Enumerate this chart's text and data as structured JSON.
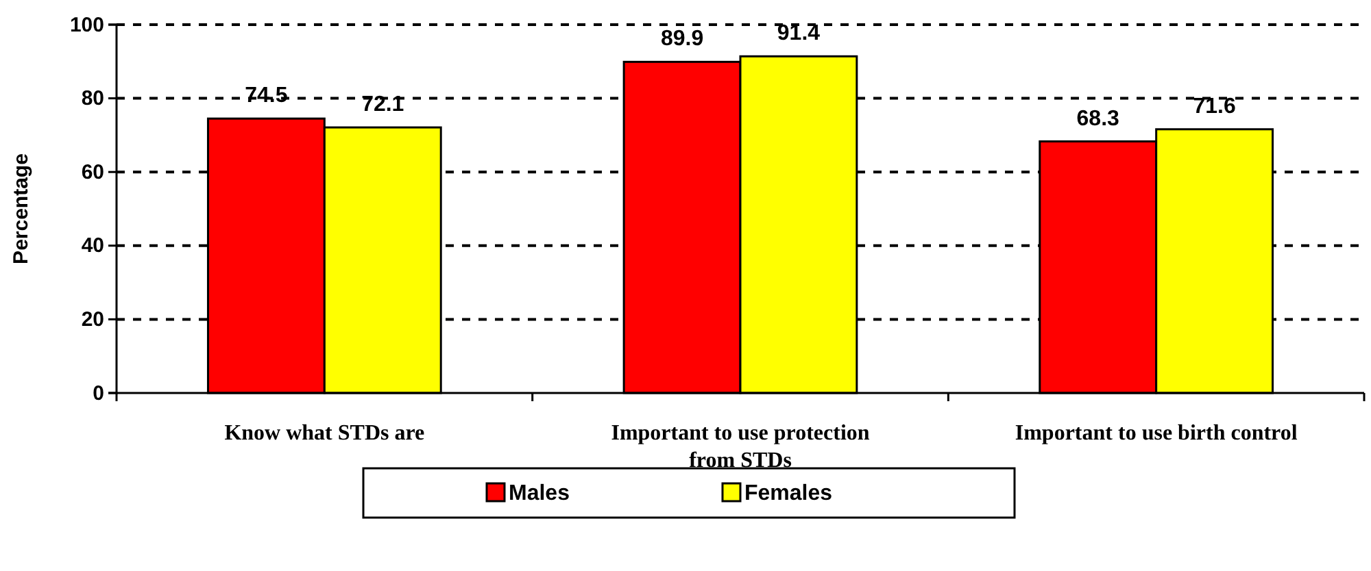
{
  "chart_data": {
    "type": "bar",
    "ylabel": "Percentage",
    "categories": [
      "Know what STDs are",
      "Important to use protection from STDs",
      "Important to use birth control"
    ],
    "series": [
      {
        "name": "Males",
        "color": "#ff0000",
        "values": [
          74.5,
          89.9,
          68.3
        ]
      },
      {
        "name": "Females",
        "color": "#ffff00",
        "values": [
          72.1,
          91.4,
          71.6
        ]
      }
    ],
    "ylim": [
      0,
      100
    ],
    "yticks": [
      0,
      20,
      40,
      60,
      80,
      100
    ],
    "grid": "y",
    "legend": "bottom",
    "data_labels": true
  }
}
